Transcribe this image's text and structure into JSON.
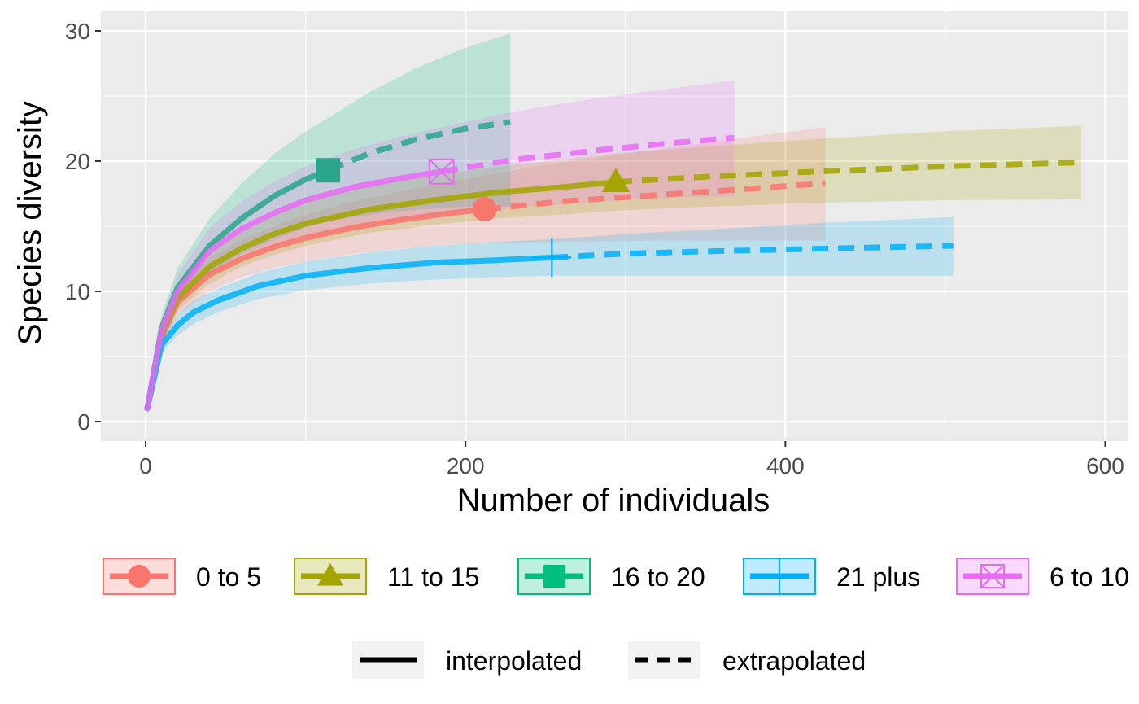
{
  "chart_data": {
    "type": "line",
    "title": "",
    "xlabel": "Number of individuals",
    "ylabel": "Species diversity",
    "xlim": [
      -28,
      614
    ],
    "ylim": [
      -1.5,
      31.5
    ],
    "x_ticks": [
      0,
      200,
      400,
      600
    ],
    "y_ticks": [
      0,
      10,
      20,
      30
    ],
    "grid": true,
    "legend_position": "bottom",
    "panel_background": "#ebebeb",
    "line_types": [
      {
        "name": "interpolated",
        "style": "solid"
      },
      {
        "name": "extrapolated",
        "style": "dashed"
      }
    ],
    "series": [
      {
        "name": "0 to 5",
        "color": "#f8766d",
        "shape": "circle",
        "observed": {
          "x": 212,
          "y": 16.3
        },
        "interpolated": {
          "x": [
            1,
            10,
            20,
            40,
            60,
            80,
            100,
            130,
            160,
            190,
            212
          ],
          "y": [
            1,
            6.5,
            9.2,
            11.3,
            12.5,
            13.4,
            14.1,
            14.9,
            15.5,
            16.0,
            16.3
          ]
        },
        "extrapolated": {
          "x": [
            212,
            260,
            320,
            380,
            425
          ],
          "y": [
            16.3,
            16.9,
            17.4,
            17.9,
            18.3
          ]
        },
        "ci_lower": [
          1,
          5.8,
          8.2,
          10.0,
          11.1,
          11.8,
          12.3,
          12.9,
          13.3,
          13.6,
          13.7,
          13.8,
          13.9,
          13.9,
          13.9
        ],
        "ci_upper": [
          1,
          7.2,
          10.2,
          12.6,
          13.9,
          15.0,
          15.9,
          16.9,
          17.7,
          18.4,
          18.9,
          19.9,
          20.9,
          21.9,
          22.6
        ],
        "ci_x": [
          1,
          10,
          20,
          40,
          60,
          80,
          100,
          130,
          160,
          190,
          212,
          260,
          320,
          380,
          425
        ]
      },
      {
        "name": "11 to 15",
        "color": "#a3a500",
        "shape": "triangle",
        "observed": {
          "x": 294,
          "y": 18.4
        },
        "interpolated": {
          "x": [
            1,
            10,
            20,
            40,
            60,
            80,
            100,
            140,
            180,
            220,
            260,
            294
          ],
          "y": [
            1,
            6.8,
            9.5,
            11.9,
            13.3,
            14.4,
            15.2,
            16.3,
            17.0,
            17.6,
            18.0,
            18.4
          ]
        },
        "extrapolated": {
          "x": [
            294,
            350,
            420,
            500,
            585
          ],
          "y": [
            18.4,
            18.8,
            19.2,
            19.6,
            19.9
          ]
        },
        "ci_lower": [
          1,
          6.0,
          8.5,
          10.6,
          11.9,
          12.8,
          13.5,
          14.5,
          15.1,
          15.6,
          15.9,
          16.2,
          16.5,
          16.8,
          17.0,
          17.1
        ],
        "ci_upper": [
          1,
          7.5,
          10.5,
          13.2,
          14.7,
          16.0,
          16.9,
          18.1,
          18.9,
          19.6,
          20.1,
          20.6,
          21.1,
          21.7,
          22.3,
          22.7
        ],
        "ci_x": [
          1,
          10,
          20,
          40,
          60,
          80,
          100,
          140,
          180,
          220,
          260,
          294,
          350,
          420,
          500,
          585
        ]
      },
      {
        "name": "16 to 20",
        "color": "#00bf7d",
        "line_color": "#2ca58d",
        "shape": "square",
        "observed": {
          "x": 114,
          "y": 19.3
        },
        "interpolated": {
          "x": [
            1,
            10,
            20,
            40,
            60,
            80,
            100,
            114
          ],
          "y": [
            1,
            7.2,
            10.3,
            13.5,
            15.6,
            17.3,
            18.6,
            19.3
          ]
        },
        "extrapolated": {
          "x": [
            114,
            140,
            170,
            200,
            228
          ],
          "y": [
            19.3,
            20.6,
            21.7,
            22.5,
            23.0
          ]
        },
        "ci_lower": [
          1,
          6.3,
          8.9,
          11.4,
          12.9,
          14.0,
          14.9,
          15.4,
          15.9,
          16.3,
          16.5,
          16.5
        ],
        "ci_upper": [
          1,
          8.2,
          11.8,
          15.6,
          18.3,
          20.5,
          22.3,
          23.3,
          25.3,
          27.2,
          28.7,
          29.8
        ],
        "ci_x": [
          1,
          10,
          20,
          40,
          60,
          80,
          100,
          114,
          140,
          170,
          200,
          228
        ]
      },
      {
        "name": "21 plus",
        "color": "#00b0f6",
        "shape": "plus",
        "observed": {
          "x": 254,
          "y": 12.6
        },
        "interpolated": {
          "x": [
            1,
            10,
            20,
            30,
            45,
            70,
            100,
            140,
            180,
            220,
            254
          ],
          "y": [
            1,
            5.9,
            7.4,
            8.4,
            9.3,
            10.4,
            11.2,
            11.8,
            12.2,
            12.4,
            12.6
          ]
        },
        "extrapolated": {
          "x": [
            254,
            300,
            360,
            430,
            505
          ],
          "y": [
            12.6,
            12.9,
            13.1,
            13.3,
            13.5
          ]
        },
        "ci_lower": [
          1,
          5.3,
          6.6,
          7.5,
          8.4,
          9.4,
          10.1,
          10.6,
          10.9,
          11.1,
          11.2,
          11.2,
          11.2,
          11.2,
          11.2
        ],
        "ci_upper": [
          1,
          6.5,
          8.2,
          9.3,
          10.2,
          11.4,
          12.3,
          13.0,
          13.5,
          13.8,
          14.0,
          14.4,
          14.8,
          15.3,
          15.7
        ],
        "ci_x": [
          1,
          10,
          20,
          30,
          45,
          70,
          100,
          140,
          180,
          220,
          254,
          300,
          360,
          430,
          505
        ]
      },
      {
        "name": "6 to 10",
        "color": "#e76bf3",
        "shape": "square-x",
        "observed": {
          "x": 185,
          "y": 19.2
        },
        "interpolated": {
          "x": [
            1,
            10,
            20,
            40,
            60,
            80,
            100,
            130,
            160,
            185
          ],
          "y": [
            1,
            7.0,
            10.0,
            13.1,
            14.8,
            16.0,
            17.0,
            18.0,
            18.7,
            19.2
          ]
        },
        "extrapolated": {
          "x": [
            185,
            230,
            280,
            330,
            368
          ],
          "y": [
            19.2,
            20.1,
            20.8,
            21.4,
            21.8
          ]
        },
        "ci_lower": [
          1,
          6.2,
          8.8,
          11.3,
          12.6,
          13.5,
          14.2,
          14.9,
          15.4,
          15.8,
          16.4,
          16.9,
          17.2,
          17.3
        ],
        "ci_upper": [
          1,
          7.9,
          11.3,
          14.9,
          16.9,
          18.4,
          19.6,
          20.9,
          21.9,
          22.6,
          23.8,
          24.8,
          25.6,
          26.2
        ],
        "ci_x": [
          1,
          10,
          20,
          40,
          60,
          80,
          100,
          130,
          160,
          185,
          230,
          280,
          330,
          368
        ]
      }
    ]
  }
}
